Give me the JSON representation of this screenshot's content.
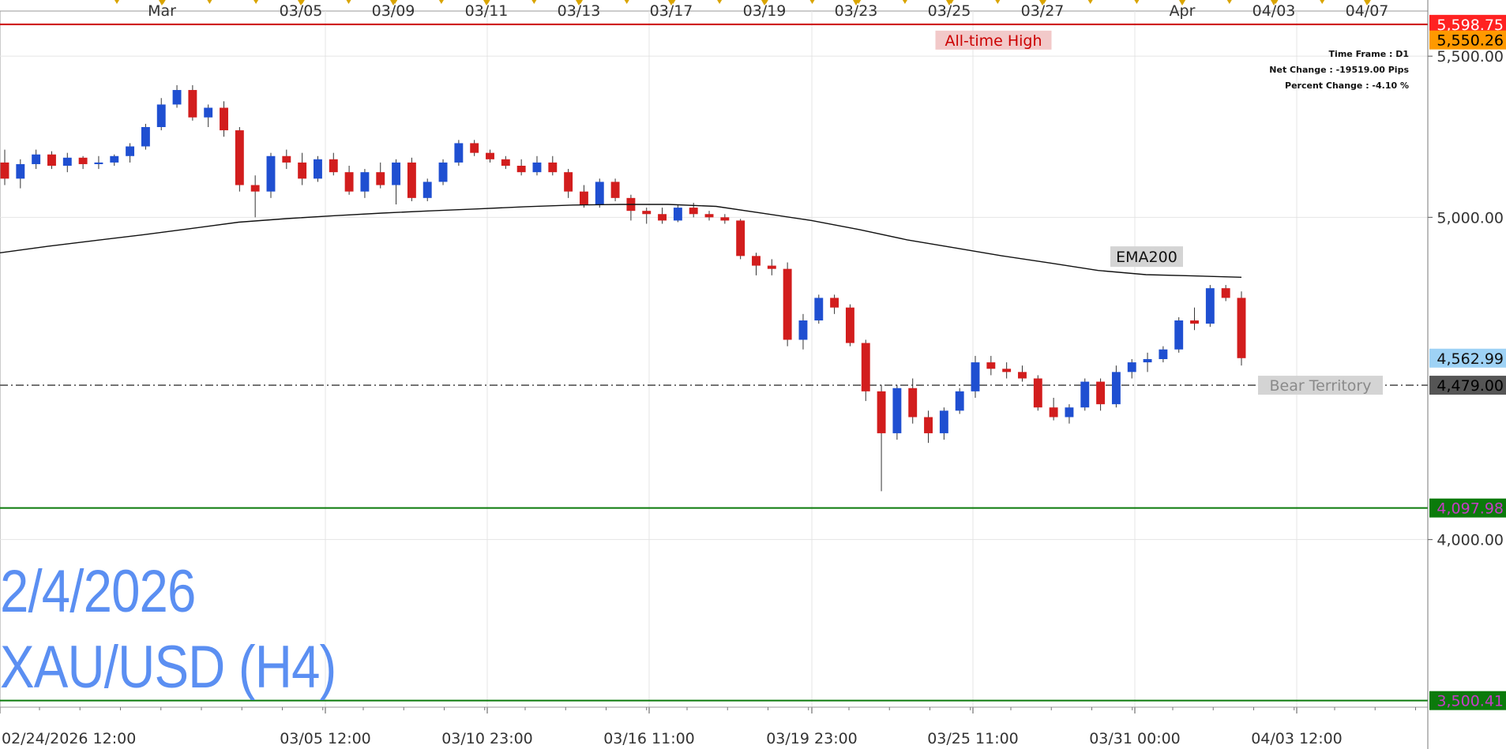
{
  "chart_data": {
    "type": "candlestick",
    "symbol": "XAU/USD (H4)",
    "date_label": "2/4/2026",
    "ylim": [
      3480,
      5640
    ],
    "y_ticks": [
      {
        "value": 5500,
        "label": "5,500.00"
      },
      {
        "value": 5000,
        "label": "5,000.00"
      },
      {
        "value": 4000,
        "label": "4,000.00"
      }
    ],
    "top_ticks": [
      "Mar",
      "03/05",
      "03/09",
      "03/11",
      "03/13",
      "03/17",
      "03/19",
      "03/23",
      "03/25",
      "03/27",
      "Apr",
      "04/03",
      "04/07"
    ],
    "bottom_ticks": [
      "02/24/2026 12:00",
      "03/05 12:00",
      "03/10 23:00",
      "03/16 11:00",
      "03/19 23:00",
      "03/25 11:00",
      "03/31 00:00",
      "04/03 12:00"
    ],
    "info": {
      "time_frame": "Time Frame : D1",
      "net_change": "Net Change : -19519.00 Pips",
      "percent_change": "Percent Change : -4.10 %"
    },
    "levels": [
      {
        "name": "All-time High",
        "value": 5598.75,
        "label": "5,598.75",
        "color": "#cc0000",
        "style": "solid"
      },
      {
        "name": "Bear Territory",
        "value": 4479.0,
        "label": "4,479.00",
        "color": "#555555",
        "style": "dashdot"
      },
      {
        "name": "",
        "value": 4097.98,
        "label": "4,097.98",
        "color": "#0b7a0b",
        "style": "solid"
      },
      {
        "name": "",
        "value": 3500.41,
        "label": "3,500.41",
        "color": "#0b7a0b",
        "style": "solid"
      }
    ],
    "price_tags": [
      {
        "value": 5550.26,
        "label": "5,550.26",
        "bg": "#ff9900",
        "fg": "#000000"
      },
      {
        "value": 4562.99,
        "label": "4,562.99",
        "bg": "#9ed2f5",
        "fg": "#111111"
      }
    ],
    "ema": {
      "name": "EMA200",
      "values": [
        4890,
        4910,
        4928,
        4946,
        4965,
        4985,
        4996,
        5005,
        5013,
        5020,
        5026,
        5033,
        5038,
        5040,
        5040,
        5034,
        5012,
        4990,
        4962,
        4930,
        4905,
        4880,
        4858,
        4835,
        4822,
        4818,
        4814
      ]
    },
    "candles": [
      [
        5170,
        5210,
        5100,
        5120
      ],
      [
        5120,
        5180,
        5090,
        5165
      ],
      [
        5165,
        5210,
        5150,
        5195
      ],
      [
        5195,
        5205,
        5150,
        5160
      ],
      [
        5160,
        5200,
        5140,
        5185
      ],
      [
        5185,
        5190,
        5150,
        5165
      ],
      [
        5165,
        5190,
        5150,
        5170
      ],
      [
        5170,
        5195,
        5160,
        5190
      ],
      [
        5190,
        5230,
        5170,
        5220
      ],
      [
        5220,
        5290,
        5210,
        5280
      ],
      [
        5280,
        5370,
        5270,
        5350
      ],
      [
        5350,
        5410,
        5340,
        5395
      ],
      [
        5395,
        5410,
        5300,
        5310
      ],
      [
        5310,
        5350,
        5280,
        5340
      ],
      [
        5340,
        5360,
        5250,
        5270
      ],
      [
        5270,
        5280,
        5080,
        5100
      ],
      [
        5100,
        5130,
        5000,
        5080
      ],
      [
        5080,
        5200,
        5060,
        5190
      ],
      [
        5190,
        5210,
        5150,
        5170
      ],
      [
        5170,
        5200,
        5100,
        5120
      ],
      [
        5120,
        5190,
        5110,
        5180
      ],
      [
        5180,
        5200,
        5130,
        5140
      ],
      [
        5140,
        5160,
        5070,
        5080
      ],
      [
        5080,
        5150,
        5060,
        5140
      ],
      [
        5140,
        5170,
        5090,
        5100
      ],
      [
        5100,
        5180,
        5040,
        5170
      ],
      [
        5170,
        5185,
        5050,
        5060
      ],
      [
        5060,
        5120,
        5050,
        5110
      ],
      [
        5110,
        5180,
        5100,
        5170
      ],
      [
        5170,
        5240,
        5160,
        5230
      ],
      [
        5230,
        5240,
        5190,
        5200
      ],
      [
        5200,
        5210,
        5170,
        5180
      ],
      [
        5180,
        5190,
        5150,
        5160
      ],
      [
        5160,
        5180,
        5130,
        5140
      ],
      [
        5140,
        5190,
        5130,
        5170
      ],
      [
        5170,
        5190,
        5130,
        5140
      ],
      [
        5140,
        5150,
        5060,
        5080
      ],
      [
        5080,
        5100,
        5030,
        5040
      ],
      [
        5040,
        5120,
        5030,
        5110
      ],
      [
        5110,
        5120,
        5050,
        5060
      ],
      [
        5060,
        5070,
        4990,
        5020
      ],
      [
        5020,
        5030,
        4980,
        5010
      ],
      [
        5010,
        5030,
        4980,
        4990
      ],
      [
        4990,
        5040,
        4985,
        5030
      ],
      [
        5030,
        5045,
        5000,
        5010
      ],
      [
        5010,
        5020,
        4990,
        5000
      ],
      [
        5000,
        5010,
        4980,
        4990
      ],
      [
        4990,
        4995,
        4870,
        4880
      ],
      [
        4880,
        4890,
        4820,
        4850
      ],
      [
        4850,
        4870,
        4820,
        4840
      ],
      [
        4840,
        4860,
        4600,
        4620
      ],
      [
        4620,
        4700,
        4590,
        4680
      ],
      [
        4680,
        4760,
        4670,
        4750
      ],
      [
        4750,
        4760,
        4700,
        4720
      ],
      [
        4720,
        4730,
        4600,
        4610
      ],
      [
        4610,
        4620,
        4430,
        4460
      ],
      [
        4460,
        4480,
        4150,
        4330
      ],
      [
        4330,
        4480,
        4310,
        4470
      ],
      [
        4470,
        4500,
        4360,
        4380
      ],
      [
        4380,
        4400,
        4300,
        4330
      ],
      [
        4330,
        4410,
        4310,
        4400
      ],
      [
        4400,
        4470,
        4390,
        4460
      ],
      [
        4460,
        4570,
        4440,
        4550
      ],
      [
        4550,
        4570,
        4510,
        4530
      ],
      [
        4530,
        4550,
        4500,
        4520
      ],
      [
        4520,
        4540,
        4490,
        4500
      ],
      [
        4500,
        4510,
        4400,
        4410
      ],
      [
        4410,
        4440,
        4370,
        4380
      ],
      [
        4380,
        4420,
        4360,
        4410
      ],
      [
        4410,
        4500,
        4400,
        4490
      ],
      [
        4490,
        4500,
        4400,
        4420
      ],
      [
        4420,
        4540,
        4410,
        4520
      ],
      [
        4520,
        4560,
        4500,
        4550
      ],
      [
        4550,
        4580,
        4520,
        4560
      ],
      [
        4560,
        4600,
        4550,
        4590
      ],
      [
        4590,
        4690,
        4580,
        4680
      ],
      [
        4680,
        4720,
        4650,
        4670
      ],
      [
        4670,
        4790,
        4660,
        4780
      ],
      [
        4780,
        4790,
        4740,
        4750
      ],
      [
        4750,
        4770,
        4540,
        4563
      ]
    ]
  }
}
